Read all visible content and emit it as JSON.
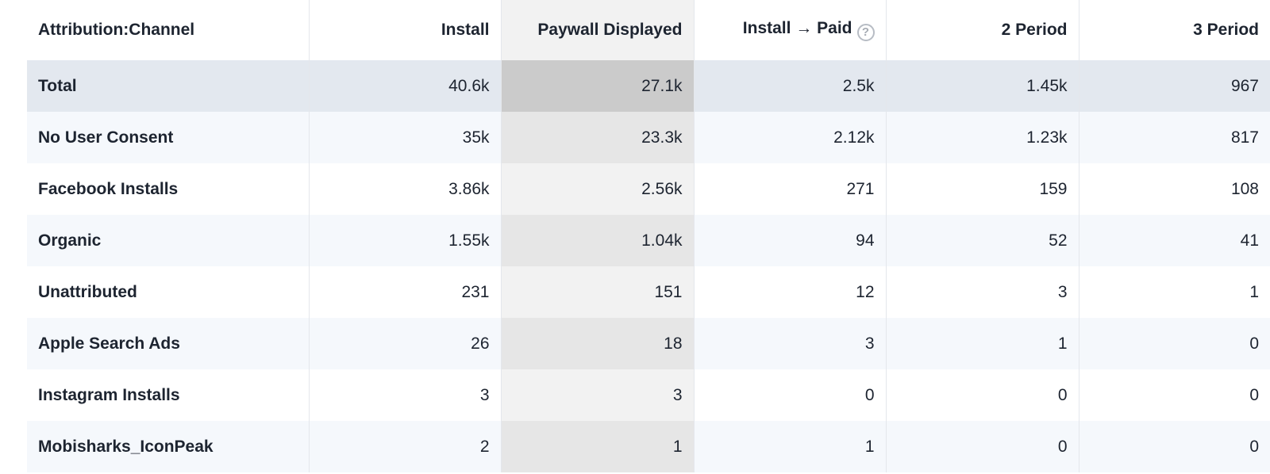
{
  "columns": [
    {
      "label": "Attribution:Channel"
    },
    {
      "label": "Install"
    },
    {
      "label": "Paywall Displayed"
    },
    {
      "label": "Install → Paid",
      "help_icon": "question-circle-icon"
    },
    {
      "label": "2 Period"
    },
    {
      "label": "3 Period"
    }
  ],
  "rows": [
    {
      "channel": "Total",
      "install": "40.6k",
      "paywall": "27.1k",
      "paid": "2.5k",
      "p2": "1.45k",
      "p3": "967"
    },
    {
      "channel": "No User Consent",
      "install": "35k",
      "paywall": "23.3k",
      "paid": "2.12k",
      "p2": "1.23k",
      "p3": "817"
    },
    {
      "channel": "Facebook Installs",
      "install": "3.86k",
      "paywall": "2.56k",
      "paid": "271",
      "p2": "159",
      "p3": "108"
    },
    {
      "channel": "Organic",
      "install": "1.55k",
      "paywall": "1.04k",
      "paid": "94",
      "p2": "52",
      "p3": "41"
    },
    {
      "channel": "Unattributed",
      "install": "231",
      "paywall": "151",
      "paid": "12",
      "p2": "3",
      "p3": "1"
    },
    {
      "channel": "Apple Search Ads",
      "install": "26",
      "paywall": "18",
      "paid": "3",
      "p2": "1",
      "p3": "0"
    },
    {
      "channel": "Instagram Installs",
      "install": "3",
      "paywall": "3",
      "paid": "0",
      "p2": "0",
      "p3": "0"
    },
    {
      "channel": "Mobisharks_IconPeak",
      "install": "2",
      "paywall": "1",
      "paid": "1",
      "p2": "0",
      "p3": "0"
    }
  ],
  "help_glyph": "?",
  "colors": {
    "total_row": "#e3e8ef",
    "sorted_column": "#f2f2f2",
    "stripe": "#f5f8fc"
  }
}
